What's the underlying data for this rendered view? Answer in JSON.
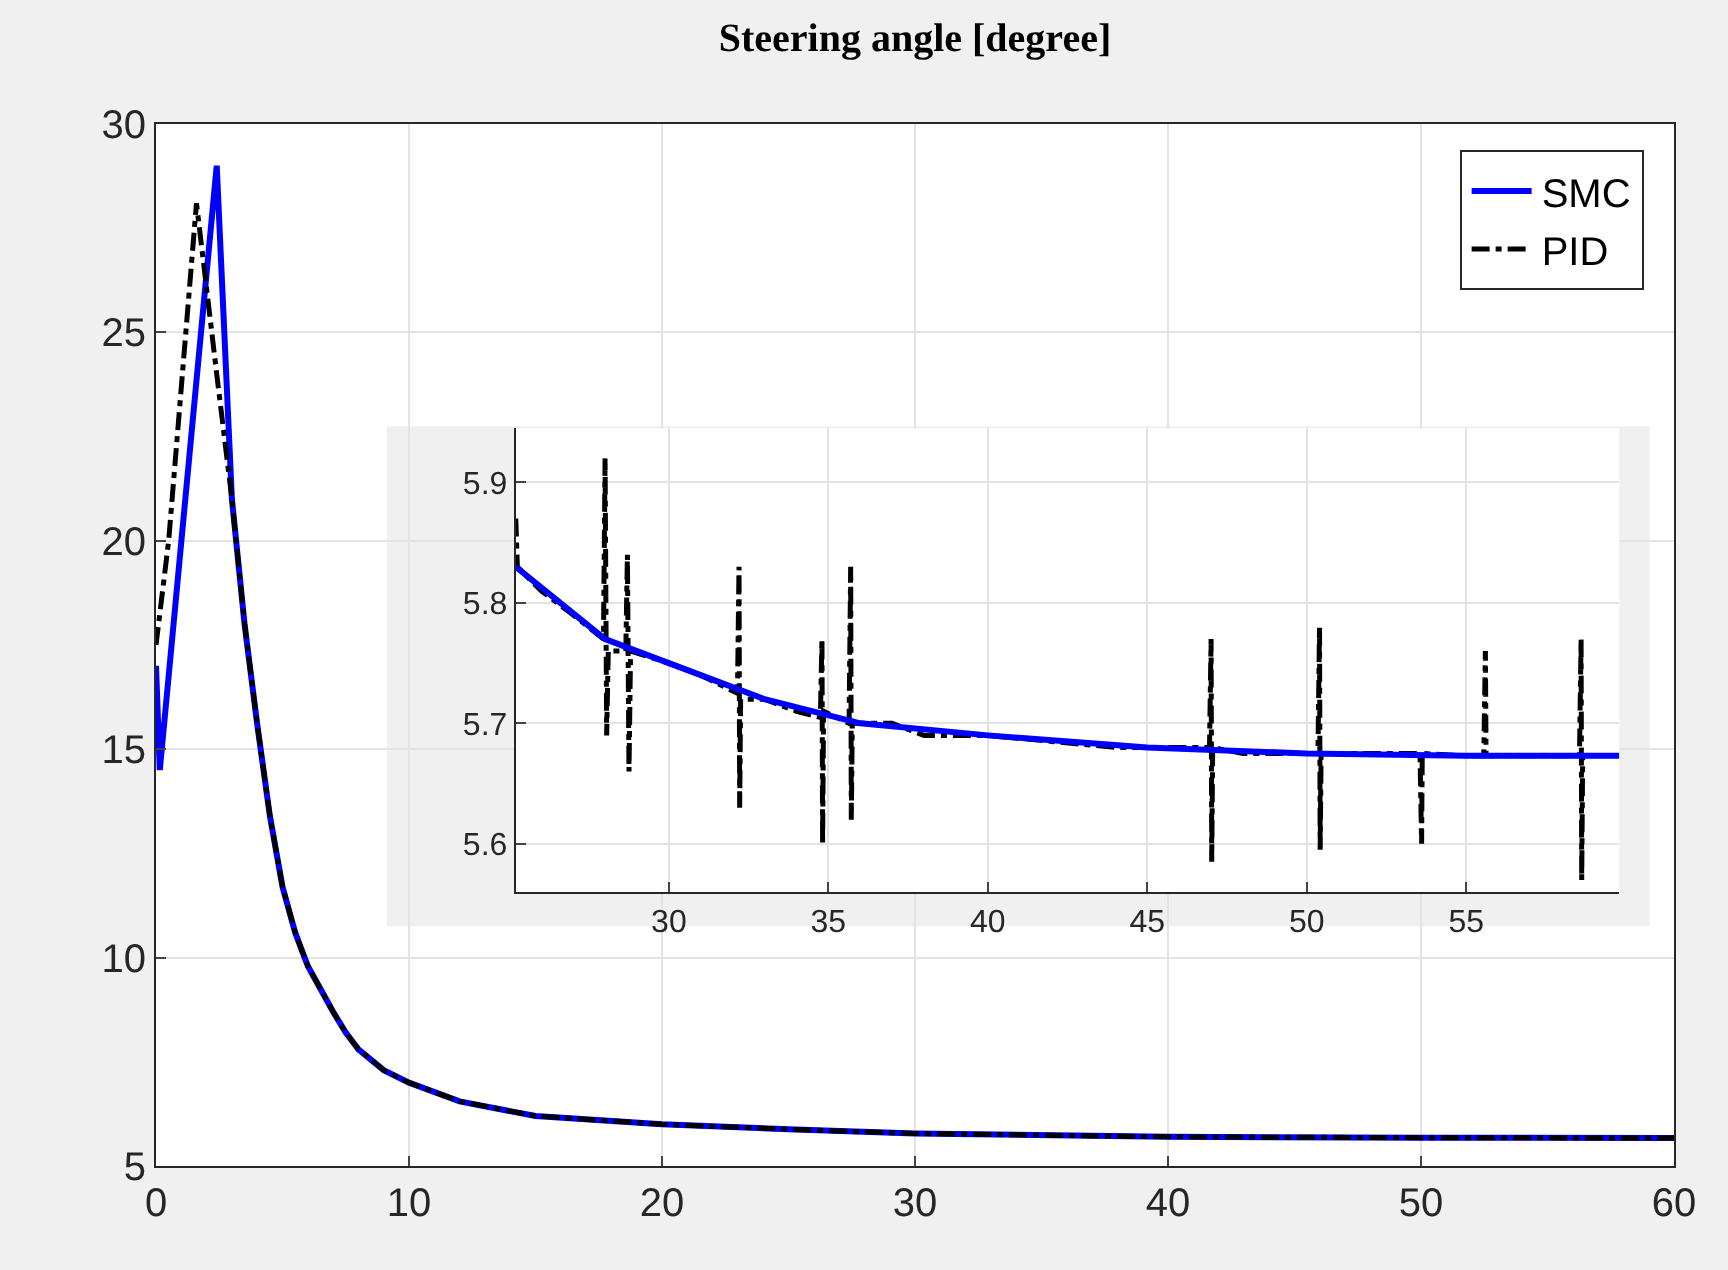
{
  "chart_data": [
    {
      "type": "line",
      "title": "Steering angle [degree]",
      "xlim": [
        0,
        60
      ],
      "ylim": [
        5,
        30
      ],
      "xticks": [
        0,
        10,
        20,
        30,
        40,
        50,
        60
      ],
      "yticks": [
        5,
        10,
        15,
        20,
        25,
        30
      ],
      "grid": true,
      "legend": "top right",
      "series": [
        {
          "name": "SMC",
          "color": "#0000ff",
          "line_style": "solid",
          "x": [
            0,
            0.15,
            2.4,
            3,
            3.5,
            4,
            4.5,
            5,
            5.5,
            6,
            7,
            7.5,
            8,
            9,
            10,
            12,
            15,
            20,
            25,
            30,
            40,
            50,
            60
          ],
          "values": [
            17,
            14.5,
            29,
            21,
            18,
            15.6,
            13.4,
            11.7,
            10.6,
            9.8,
            8.7,
            8.2,
            7.8,
            7.3,
            7.0,
            6.55,
            6.2,
            6.0,
            5.88,
            5.78,
            5.7,
            5.68,
            5.67
          ]
        },
        {
          "name": "PID",
          "color": "#000000",
          "line_style": "dashed",
          "x": [
            0,
            0.5,
            1.6,
            2.4,
            3,
            3.5,
            4,
            4.5,
            5,
            5.5,
            6,
            7,
            7.5,
            8,
            9,
            10,
            12,
            15,
            20,
            25,
            30,
            40,
            50,
            60
          ],
          "values": [
            17.5,
            20,
            28.1,
            24,
            21,
            18,
            15.6,
            13.4,
            11.7,
            10.6,
            9.8,
            8.7,
            8.2,
            7.8,
            7.3,
            7.0,
            6.55,
            6.2,
            6.0,
            5.88,
            5.78,
            5.7,
            5.68,
            5.67
          ]
        }
      ]
    },
    {
      "type": "line",
      "xlim": [
        25.2,
        59.8
      ],
      "ylim": [
        5.56,
        5.945
      ],
      "xticks": [
        30,
        35,
        40,
        45,
        50,
        55
      ],
      "yticks": [
        5.6,
        5.7,
        5.8,
        5.9
      ],
      "grid": true,
      "legend": false,
      "series": [
        {
          "color": "#000000",
          "line_style": "dashed",
          "x": [
            25.2,
            25.25,
            26,
            27,
            27.95,
            28.0,
            28.05,
            28.1,
            28.65,
            28.7,
            28.75,
            28.8,
            30,
            31,
            32.15,
            32.2,
            32.22,
            32.25,
            33,
            34,
            34.75,
            34.8,
            34.82,
            34.85,
            35.65,
            35.7,
            35.72,
            35.75,
            37,
            38,
            40,
            42,
            44,
            46,
            46.95,
            47,
            47.02,
            47.05,
            48,
            50.35,
            50.4,
            50.42,
            50.45,
            52,
            53.55,
            53.6,
            53.62,
            55,
            55.55,
            55.6,
            55.62,
            57,
            58.55,
            58.6,
            58.62,
            58.65
          ],
          "values": [
            5.87,
            5.83,
            5.81,
            5.79,
            5.77,
            5.92,
            5.69,
            5.76,
            5.76,
            5.84,
            5.66,
            5.76,
            5.75,
            5.74,
            5.725,
            5.83,
            5.63,
            5.72,
            5.72,
            5.71,
            5.705,
            5.77,
            5.6,
            5.71,
            5.7,
            5.83,
            5.62,
            5.7,
            5.7,
            5.69,
            5.69,
            5.685,
            5.68,
            5.68,
            5.68,
            5.77,
            5.585,
            5.68,
            5.675,
            5.675,
            5.78,
            5.595,
            5.675,
            5.675,
            5.675,
            5.6,
            5.675,
            5.673,
            5.673,
            5.76,
            5.673,
            5.673,
            5.673,
            5.77,
            5.57,
            5.673
          ]
        },
        {
          "color": "#0000ff",
          "line_style": "solid",
          "x": [
            25.2,
            28,
            30,
            33,
            36,
            40,
            45,
            50,
            55,
            59.8
          ],
          "values": [
            5.83,
            5.77,
            5.75,
            5.72,
            5.7,
            5.69,
            5.68,
            5.675,
            5.673,
            5.673
          ]
        }
      ]
    }
  ]
}
